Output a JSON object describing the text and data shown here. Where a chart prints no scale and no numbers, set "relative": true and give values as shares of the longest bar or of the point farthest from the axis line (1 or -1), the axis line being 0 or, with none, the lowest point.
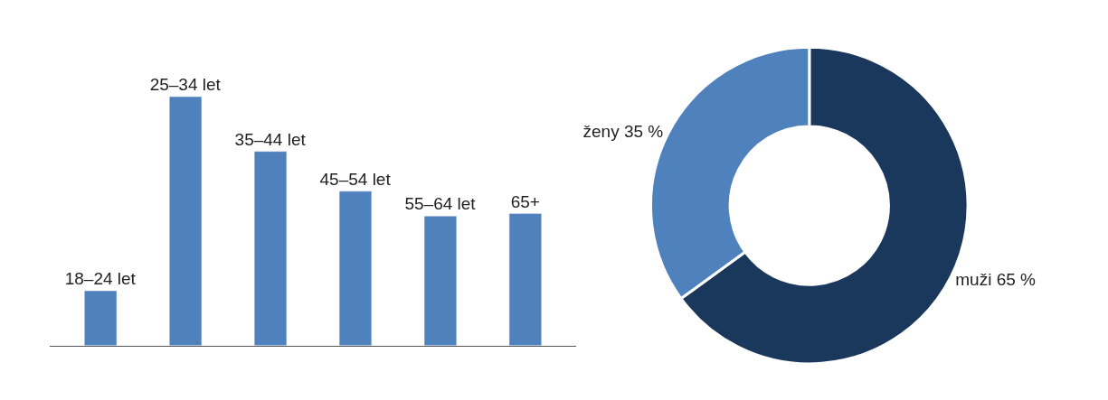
{
  "chart_data": [
    {
      "type": "bar",
      "relative": true,
      "categories": [
        "18–24 let",
        "25–34 let",
        "35–44 let",
        "45–54 let",
        "55–64 let",
        "65+"
      ],
      "values": [
        0.22,
        1,
        0.78,
        0.62,
        0.52,
        0.53
      ],
      "color": "#4f81bd",
      "tick_labels": false
    },
    {
      "type": "donut",
      "categories": [
        "muži 65 %",
        "ženy 35 %"
      ],
      "values": [
        65,
        35
      ],
      "colors": [
        "#1a375c",
        "#4f81bd"
      ]
    }
  ]
}
